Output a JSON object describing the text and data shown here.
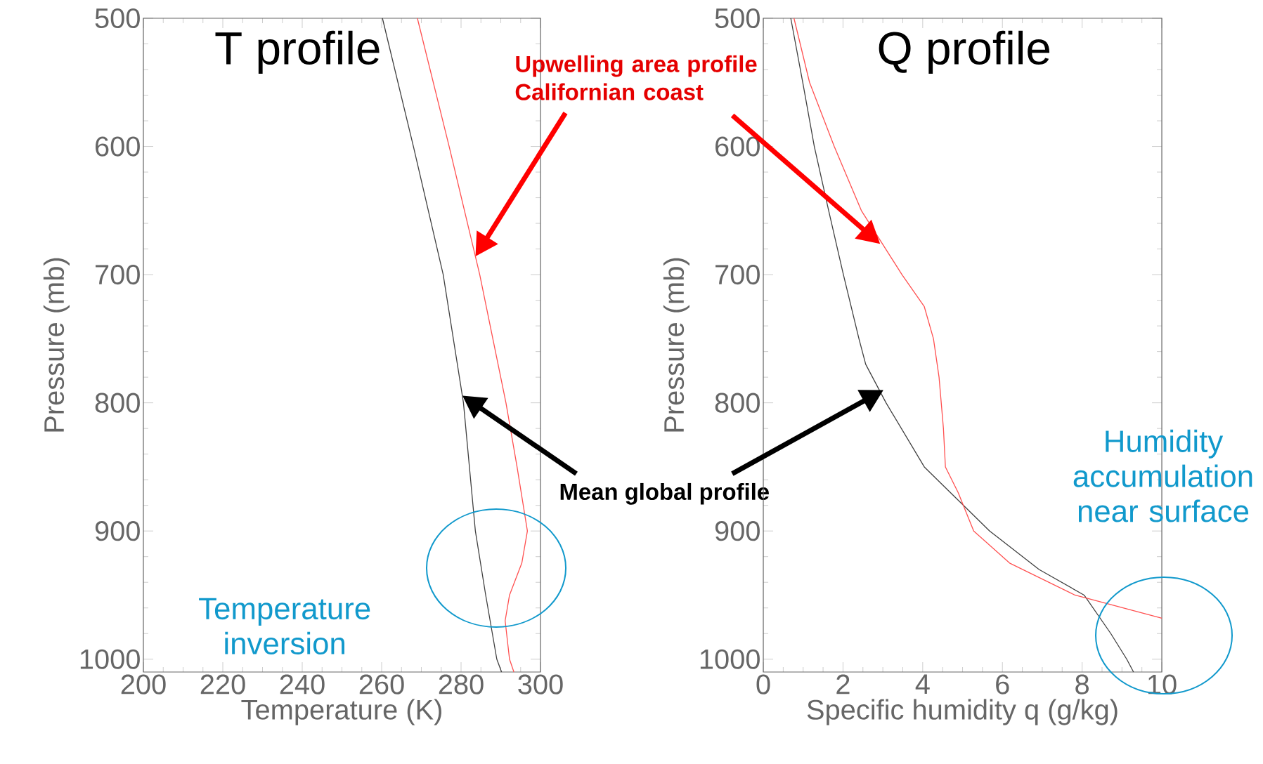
{
  "chart_data": [
    {
      "type": "line",
      "title": "T profile",
      "xlabel": "Temperature (K)",
      "ylabel": "Pressure (mb)",
      "xlim": [
        200,
        300
      ],
      "xticks": [
        200,
        220,
        240,
        260,
        280,
        300
      ],
      "ylim": [
        1010,
        500
      ],
      "yticks": [
        500,
        600,
        700,
        800,
        900,
        1000
      ],
      "series": [
        {
          "color": "#404040",
          "x": [
            260.2,
            268,
            275.5,
            280.6,
            283.6,
            286.2,
            289,
            290.2
          ],
          "values": [
            500,
            600,
            700,
            800,
            900,
            950,
            1000,
            1010
          ]
        },
        {
          "color": "#ff5050",
          "x": [
            269,
            277,
            284.7,
            291.3,
            294.1,
            296.7,
            295.3,
            292.2,
            291.1,
            292.2,
            293.3
          ],
          "values": [
            500,
            600,
            700,
            800,
            850,
            900,
            925,
            950,
            970,
            1000,
            1010
          ]
        }
      ],
      "annotations": [
        "Upwelling area profile Californian coast",
        "Mean global profile",
        "Temperature inversion"
      ]
    },
    {
      "type": "line",
      "title": "Q profile",
      "xlabel": "Specific humidity q (g/kg)",
      "ylabel": "Pressure (mb)",
      "xlim": [
        0,
        10
      ],
      "xticks": [
        0,
        2,
        4,
        6,
        8,
        10
      ],
      "ylim": [
        1010,
        500
      ],
      "yticks": [
        500,
        600,
        700,
        800,
        900,
        1000
      ],
      "series": [
        {
          "color": "#404040",
          "x": [
            0.69,
            0.99,
            1.28,
            1.64,
            2.01,
            2.4,
            2.57,
            3.08,
            4.04,
            5.68,
            6.92,
            8.05,
            8.72,
            9.12,
            9.29
          ],
          "values": [
            500,
            550,
            600,
            650,
            700,
            750,
            770,
            800,
            850,
            900,
            930,
            950,
            980,
            1000,
            1010
          ]
        },
        {
          "color": "#ff5050",
          "x": [
            0.77,
            1.16,
            1.78,
            2.46,
            3.48,
            4.04,
            4.27,
            4.41,
            4.52,
            4.57,
            4.89,
            5.28,
            6.18,
            7.82,
            10
          ],
          "values": [
            500,
            550,
            600,
            650,
            700,
            725,
            750,
            780,
            820,
            850,
            870,
            900,
            925,
            950,
            968
          ]
        }
      ],
      "annotations": [
        "Humidity accumulation near surface"
      ]
    }
  ]
}
